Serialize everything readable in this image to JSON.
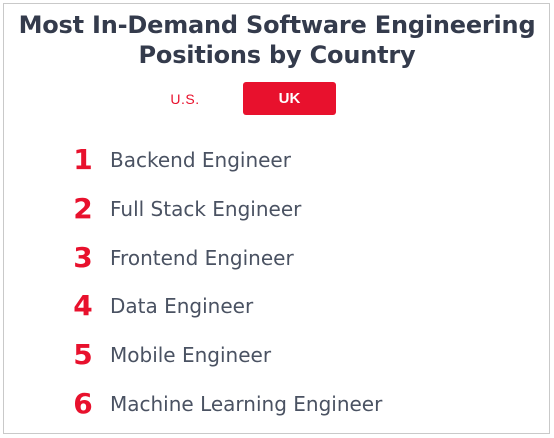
{
  "header": {
    "title_line1": "Most In-Demand Software Engineering",
    "title_line2": "Positions by Country"
  },
  "tabs": [
    {
      "label": "U.S.",
      "selected": false
    },
    {
      "label": "UK",
      "selected": true
    }
  ],
  "accent_color": "#e8112d",
  "positions": [
    {
      "rank": "1",
      "title": "Backend Engineer"
    },
    {
      "rank": "2",
      "title": "Full Stack Engineer"
    },
    {
      "rank": "3",
      "title": "Frontend Engineer"
    },
    {
      "rank": "4",
      "title": "Data Engineer"
    },
    {
      "rank": "5",
      "title": "Mobile Engineer"
    },
    {
      "rank": "6",
      "title": "Machine Learning Engineer"
    }
  ]
}
